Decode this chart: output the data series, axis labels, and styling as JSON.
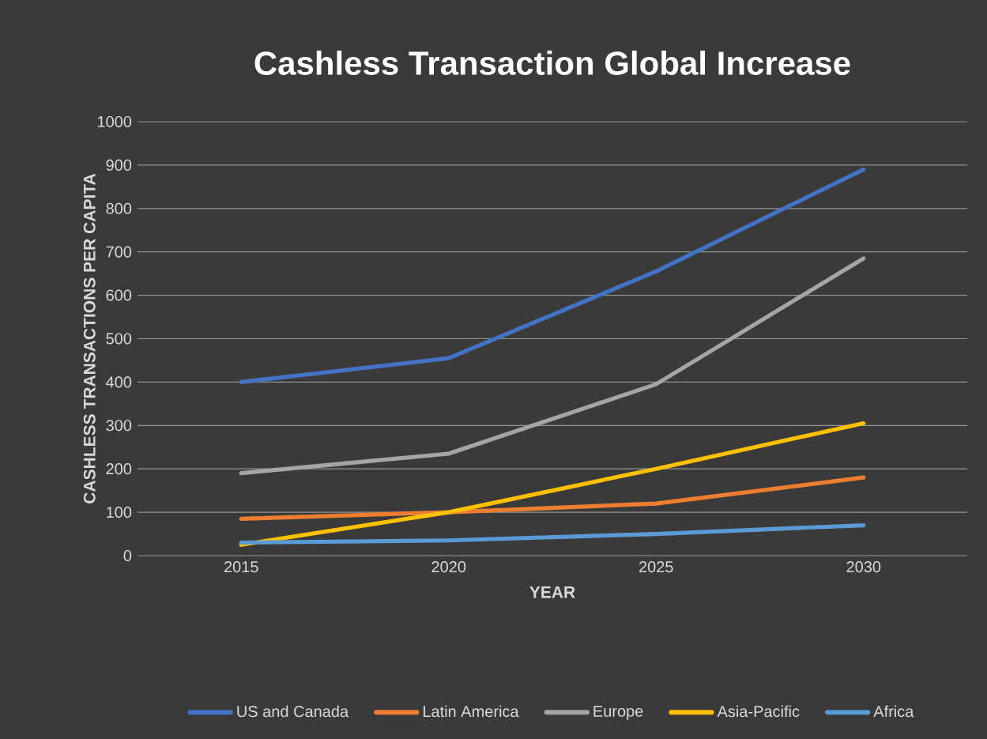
{
  "chart_data": {
    "type": "line",
    "title": "Cashless Transaction Global Increase",
    "xlabel": "YEAR",
    "ylabel": "CASHLESS TRANSACTIONS PER CAPITA",
    "categories": [
      "2015",
      "2020",
      "2025",
      "2030"
    ],
    "series": [
      {
        "name": "US and Canada",
        "color": "#4472c4",
        "values": [
          400,
          455,
          655,
          890
        ]
      },
      {
        "name": "Latin America",
        "color": "#ed7d31",
        "values": [
          85,
          100,
          120,
          180
        ]
      },
      {
        "name": "Europe",
        "color": "#a5a5a5",
        "values": [
          190,
          235,
          395,
          685
        ]
      },
      {
        "name": "Asia-Pacific",
        "color": "#ffc000",
        "values": [
          25,
          100,
          200,
          305
        ]
      },
      {
        "name": "Africa",
        "color": "#5b9bd5",
        "values": [
          30,
          35,
          50,
          70
        ]
      }
    ],
    "ylim": [
      0,
      1000
    ],
    "yticks": [
      0,
      100,
      200,
      300,
      400,
      500,
      600,
      700,
      800,
      900,
      1000
    ],
    "grid": "y",
    "legend": "bottom",
    "marker": "none",
    "line_style": "solid"
  }
}
